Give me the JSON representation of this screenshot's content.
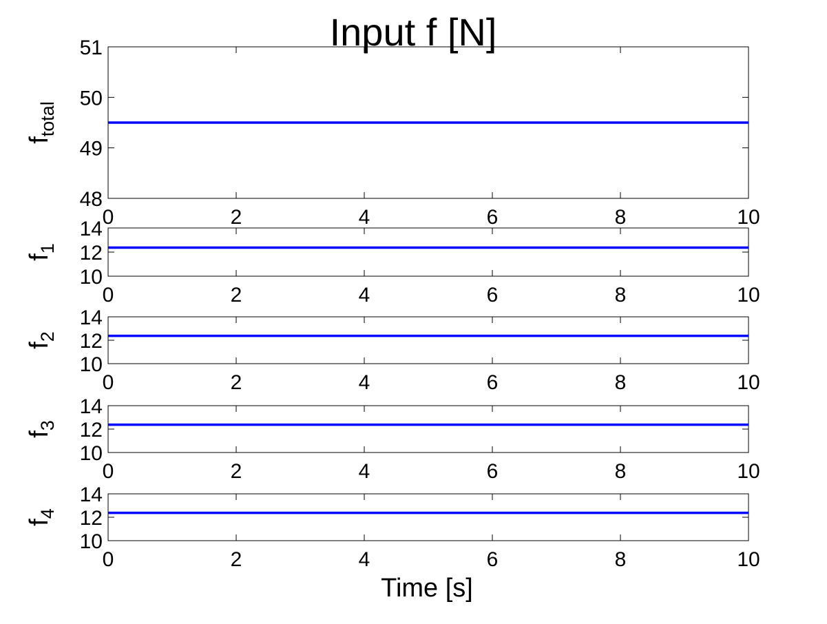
{
  "chart_data": {
    "type": "line",
    "title": "Input f [N]",
    "xlabel": "Time [s]",
    "series_color": "#0000ff",
    "subplots": [
      {
        "name": "total",
        "ylabel": "f",
        "ylabel_subscript": "total",
        "xlim": [
          0,
          10
        ],
        "ylim": [
          48,
          51
        ],
        "xticks": [
          0,
          2,
          4,
          6,
          8,
          10
        ],
        "yticks": [
          48,
          49,
          50,
          51
        ],
        "x": [
          0,
          10
        ],
        "y": [
          49.5,
          49.5
        ]
      },
      {
        "name": "f1",
        "ylabel": "f",
        "ylabel_subscript": "1",
        "xlim": [
          0,
          10
        ],
        "ylim": [
          10,
          14
        ],
        "xticks": [
          0,
          2,
          4,
          6,
          8,
          10
        ],
        "yticks": [
          10,
          12,
          14
        ],
        "x": [
          0,
          10
        ],
        "y": [
          12.375,
          12.375
        ]
      },
      {
        "name": "f2",
        "ylabel": "f",
        "ylabel_subscript": "2",
        "xlim": [
          0,
          10
        ],
        "ylim": [
          10,
          14
        ],
        "xticks": [
          0,
          2,
          4,
          6,
          8,
          10
        ],
        "yticks": [
          10,
          12,
          14
        ],
        "x": [
          0,
          10
        ],
        "y": [
          12.375,
          12.375
        ]
      },
      {
        "name": "f3",
        "ylabel": "f",
        "ylabel_subscript": "3",
        "xlim": [
          0,
          10
        ],
        "ylim": [
          10,
          14
        ],
        "xticks": [
          0,
          2,
          4,
          6,
          8,
          10
        ],
        "yticks": [
          10,
          12,
          14
        ],
        "x": [
          0,
          10
        ],
        "y": [
          12.375,
          12.375
        ]
      },
      {
        "name": "f4",
        "ylabel": "f",
        "ylabel_subscript": "4",
        "xlim": [
          0,
          10
        ],
        "ylim": [
          10,
          14
        ],
        "xticks": [
          0,
          2,
          4,
          6,
          8,
          10
        ],
        "yticks": [
          10,
          12,
          14
        ],
        "x": [
          0,
          10
        ],
        "y": [
          12.375,
          12.375
        ]
      }
    ]
  }
}
